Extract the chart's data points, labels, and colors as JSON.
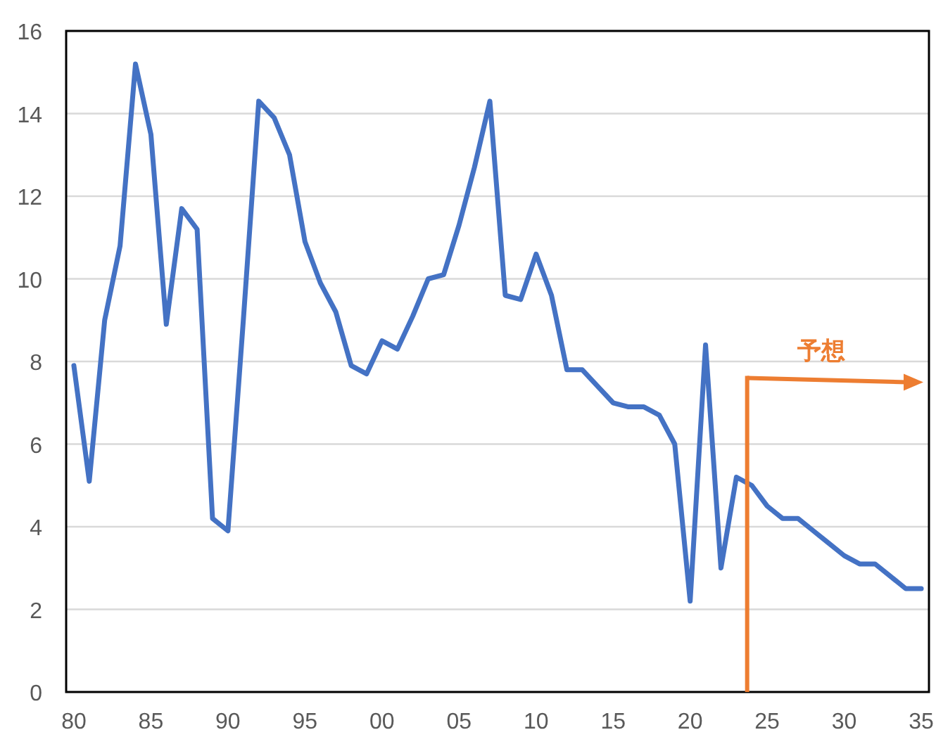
{
  "chart_data": {
    "type": "line",
    "x": [
      1980,
      1981,
      1982,
      1983,
      1984,
      1985,
      1986,
      1987,
      1988,
      1989,
      1990,
      1991,
      1992,
      1993,
      1994,
      1995,
      1996,
      1997,
      1998,
      1999,
      2000,
      2001,
      2002,
      2003,
      2004,
      2005,
      2006,
      2007,
      2008,
      2009,
      2010,
      2011,
      2012,
      2013,
      2014,
      2015,
      2016,
      2017,
      2018,
      2019,
      2020,
      2021,
      2022,
      2023,
      2024,
      2025,
      2026,
      2027,
      2028,
      2029,
      2030,
      2031,
      2032,
      2033,
      2034,
      2035
    ],
    "series": [
      {
        "color": "#4472c4",
        "values": [
          7.9,
          5.1,
          9.0,
          10.8,
          15.2,
          13.5,
          8.9,
          11.7,
          11.2,
          4.2,
          3.9,
          9.0,
          14.3,
          13.9,
          13.0,
          10.9,
          9.9,
          9.2,
          7.9,
          7.7,
          8.5,
          8.3,
          9.1,
          10.0,
          10.1,
          11.3,
          12.7,
          14.3,
          9.6,
          9.5,
          10.6,
          9.6,
          7.8,
          7.8,
          7.4,
          7.0,
          6.9,
          6.9,
          6.7,
          6.0,
          2.2,
          8.4,
          3.0,
          5.2,
          5.0,
          4.5,
          4.2,
          4.2,
          3.9,
          3.6,
          3.3,
          3.1,
          3.1,
          2.8,
          2.5,
          2.5
        ]
      }
    ],
    "xlim": [
      1979.5,
      2035.5
    ],
    "xticks": [
      {
        "value": 1980,
        "label": "80"
      },
      {
        "value": 1985,
        "label": "85"
      },
      {
        "value": 1990,
        "label": "90"
      },
      {
        "value": 1995,
        "label": "95"
      },
      {
        "value": 2000,
        "label": "00"
      },
      {
        "value": 2005,
        "label": "05"
      },
      {
        "value": 2010,
        "label": "10"
      },
      {
        "value": 2015,
        "label": "15"
      },
      {
        "value": 2020,
        "label": "20"
      },
      {
        "value": 2025,
        "label": "25"
      },
      {
        "value": 2030,
        "label": "30"
      },
      {
        "value": 2035,
        "label": "35"
      }
    ],
    "ylim": [
      0,
      16
    ],
    "yticks": [
      0,
      2,
      4,
      6,
      8,
      10,
      12,
      14,
      16
    ],
    "grid": "y",
    "marker": "none",
    "line_style": "solid",
    "ref_lines": [
      {
        "axis": "x",
        "value": 2023.7,
        "label": "予想",
        "color": "#ed7d31"
      }
    ]
  }
}
